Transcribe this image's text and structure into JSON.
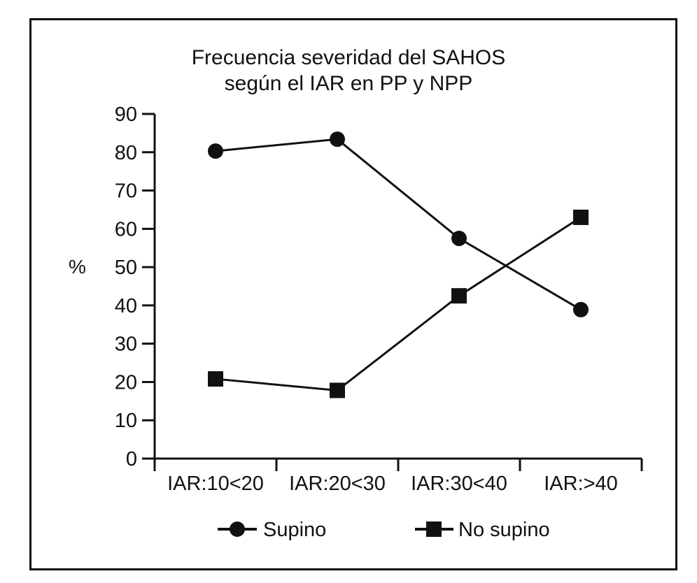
{
  "chart_data": {
    "type": "line",
    "title": [
      "Frecuencia severidad del SAHOS",
      "según el IAR en PP y NPP"
    ],
    "ylabel": "%",
    "xlabel": "",
    "categories": [
      "IAR:10<20",
      "IAR:20<30",
      "IAR:30<40",
      "IAR:>40"
    ],
    "ylim": [
      0,
      90
    ],
    "yticks": [
      0,
      10,
      20,
      30,
      40,
      50,
      60,
      70,
      80,
      90
    ],
    "grid": false,
    "legend_position": "bottom",
    "series": [
      {
        "name": "Supino",
        "marker": "circle",
        "values": [
          80.3,
          83.4,
          57.5,
          38.9
        ]
      },
      {
        "name": "No supino",
        "marker": "square",
        "values": [
          20.8,
          17.8,
          42.5,
          63.0
        ]
      }
    ]
  },
  "colors": {
    "line": "#111111",
    "background": "#ffffff"
  }
}
